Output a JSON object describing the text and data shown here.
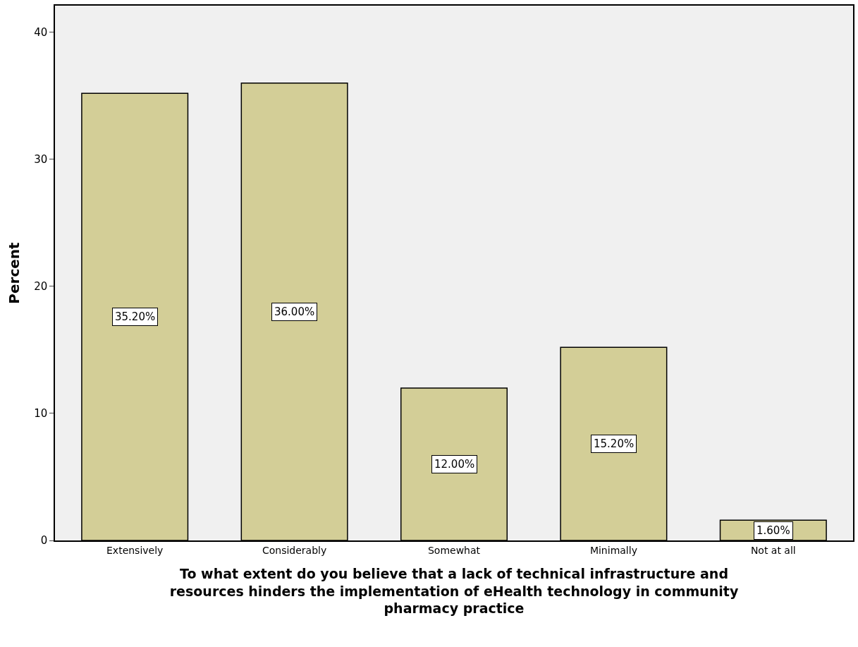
{
  "chart_data": {
    "type": "bar",
    "xlabel": "To what extent do you believe that a lack of technical infrastructure and resources hinders the implementation of eHealth technology in community pharmacy practice",
    "ylabel": "Percent",
    "categories": [
      "Extensively",
      "Considerably",
      "Somewhat",
      "Minimally",
      "Not at all"
    ],
    "values": [
      35.2,
      36.0,
      12.0,
      15.2,
      1.6
    ],
    "value_labels": [
      "35.20%",
      "36.00%",
      "12.00%",
      "15.20%",
      "1.60%"
    ],
    "color": "#d3ce97",
    "ylim": [
      0,
      42.1
    ],
    "yticks": [
      0,
      10,
      20,
      30,
      40
    ]
  }
}
